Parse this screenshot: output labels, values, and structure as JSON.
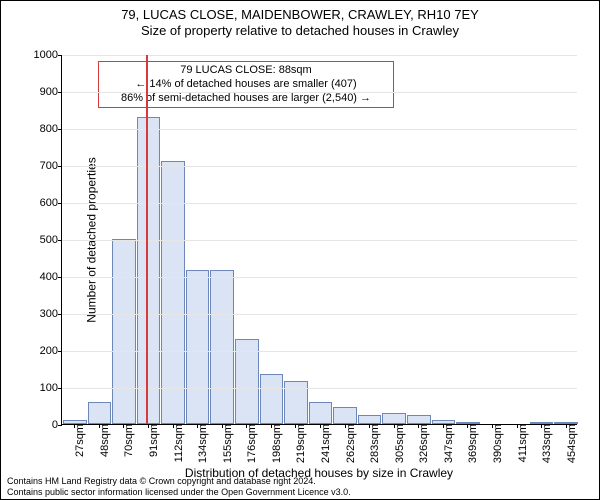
{
  "chart": {
    "type": "histogram",
    "title_line1": "79, LUCAS CLOSE, MAIDENBOWER, CRAWLEY, RH10 7EY",
    "title_line2": "Size of property relative to detached houses in Crawley",
    "title_fontsize": 13,
    "y_label": "Number of detached properties",
    "x_label": "Distribution of detached houses by size in Crawley",
    "axis_label_fontsize": 12,
    "tick_fontsize": 11,
    "background_color": "#ffffff",
    "grid_color": "#e6e6e6",
    "axis_color": "#000000",
    "bar_fill": "#dbe4f5",
    "bar_stroke": "#6d87b9",
    "marker_color": "#d73a3a",
    "ylim_min": 0,
    "ylim_max": 1000,
    "y_ticks": [
      0,
      100,
      200,
      300,
      400,
      500,
      600,
      700,
      800,
      900,
      1000
    ],
    "x_ticks": [
      "27sqm",
      "48sqm",
      "70sqm",
      "91sqm",
      "112sqm",
      "134sqm",
      "155sqm",
      "176sqm",
      "198sqm",
      "219sqm",
      "241sqm",
      "262sqm",
      "283sqm",
      "305sqm",
      "326sqm",
      "347sqm",
      "369sqm",
      "390sqm",
      "411sqm",
      "433sqm",
      "454sqm"
    ],
    "values": [
      10,
      60,
      500,
      830,
      710,
      415,
      415,
      230,
      135,
      115,
      60,
      45,
      25,
      30,
      25,
      10,
      5,
      0,
      0,
      3,
      3
    ],
    "marker_at_index": 2.9,
    "annotation": {
      "line1": "79 LUCAS CLOSE: 88sqm",
      "line2": "← 14% of detached houses are smaller (407)",
      "line3": "86% of semi-detached houses are larger (2,540) →"
    },
    "annotation_fontsize": 11
  },
  "footer": {
    "line1": "Contains HM Land Registry data © Crown copyright and database right 2024.",
    "line2": "Contains public sector information licensed under the Open Government Licence v3.0.",
    "fontsize": 9
  }
}
